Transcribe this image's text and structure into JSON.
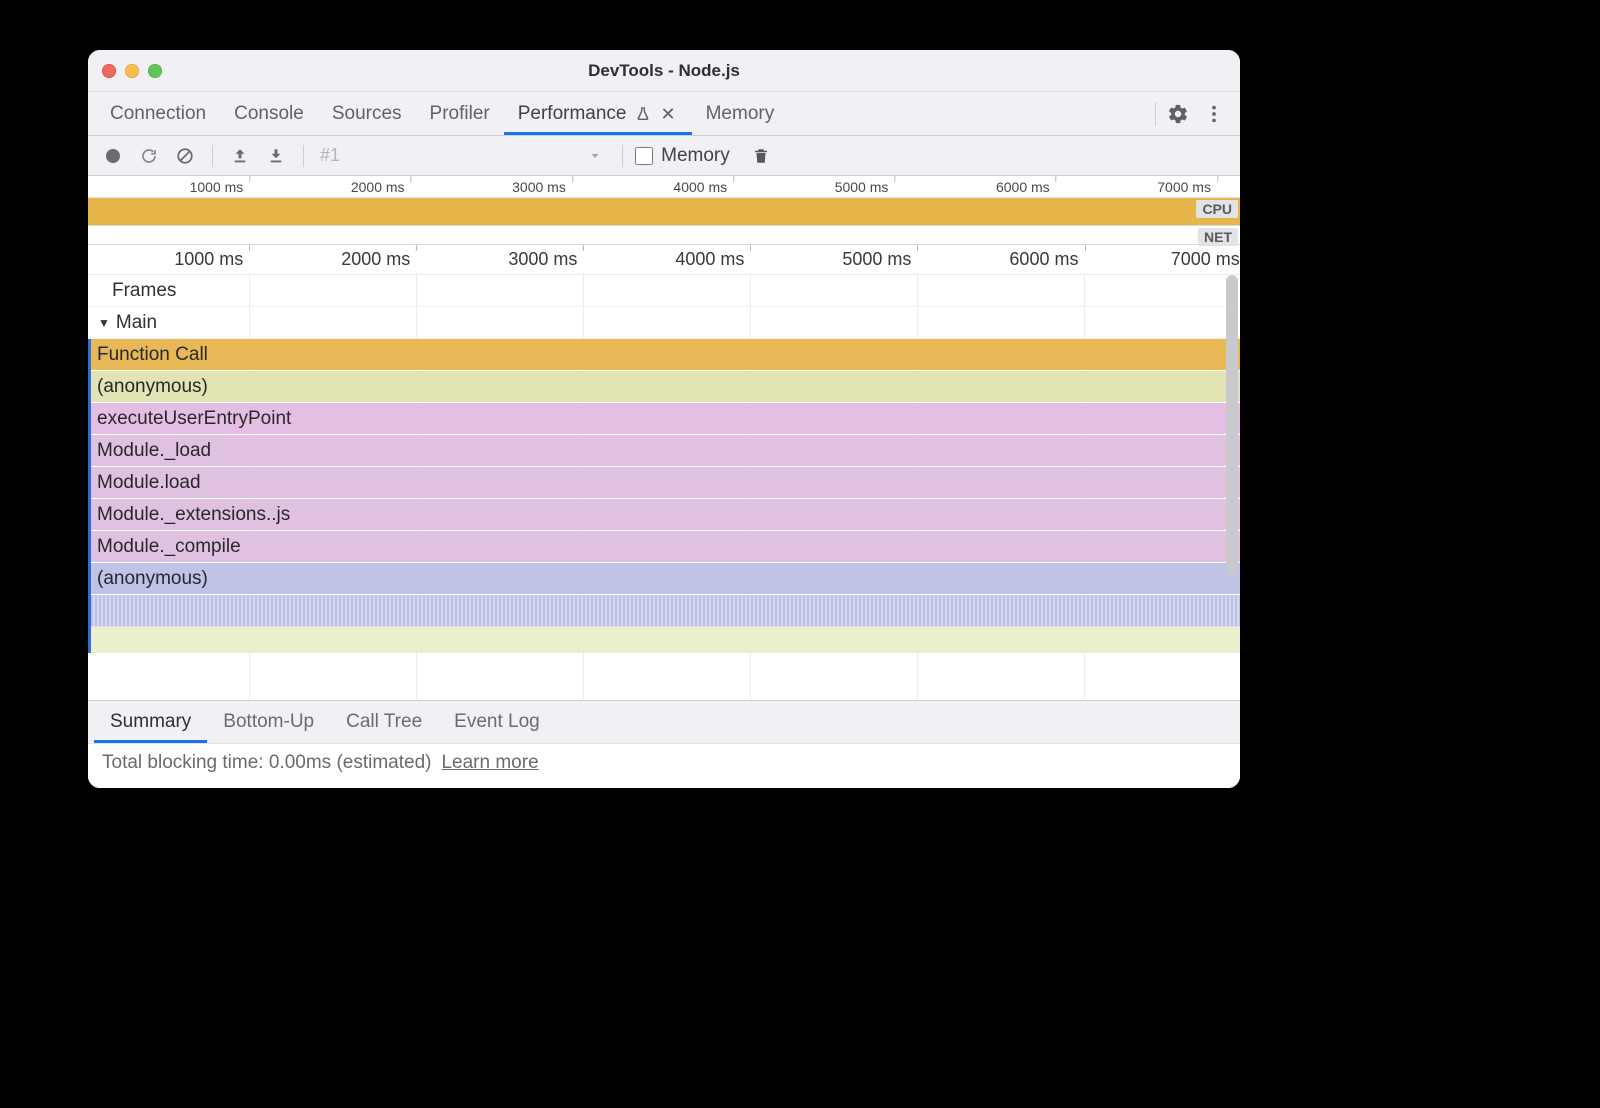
{
  "window": {
    "title": "DevTools - Node.js"
  },
  "tabs": {
    "list": [
      {
        "label": "Connection",
        "active": false
      },
      {
        "label": "Console",
        "active": false
      },
      {
        "label": "Sources",
        "active": false
      },
      {
        "label": "Profiler",
        "active": false
      },
      {
        "label": "Performance",
        "active": true,
        "experimental": true,
        "closable": true
      },
      {
        "label": "Memory",
        "active": false
      }
    ]
  },
  "toolbar": {
    "recording_id": "#1",
    "memory_label": "Memory",
    "memory_checked": false
  },
  "overview": {
    "tick_labels": [
      "1000 ms",
      "2000 ms",
      "3000 ms",
      "4000 ms",
      "5000 ms",
      "6000 ms",
      "7000 ms"
    ],
    "tick_positions_pct": [
      14,
      28,
      42,
      56,
      70,
      84,
      98
    ],
    "cpu_label": "CPU",
    "net_label": "NET",
    "cpu_color": "#e7b64a"
  },
  "detail_ruler": {
    "tick_labels": [
      "1000 ms",
      "2000 ms",
      "3000 ms",
      "4000 ms",
      "5000 ms",
      "6000 ms",
      "7000 ms"
    ],
    "tick_positions_pct": [
      14,
      28.5,
      43,
      57.5,
      72,
      86.5,
      100.5
    ]
  },
  "tracks": {
    "gridline_positions_pct": [
      14,
      28.5,
      43,
      57.5,
      72,
      86.5
    ],
    "frames_label": "Frames",
    "main_label": "Main",
    "flame": [
      {
        "label": "Function Call",
        "color": "#e8b756"
      },
      {
        "label": "(anonymous)",
        "color": "#e2e4b4"
      },
      {
        "label": "executeUserEntryPoint",
        "color": "#e4bfe3"
      },
      {
        "label": "Module._load",
        "color": "#e0c1e2"
      },
      {
        "label": "Module.load",
        "color": "#e0c1e2"
      },
      {
        "label": "Module._extensions..js",
        "color": "#e0c1e2"
      },
      {
        "label": "Module._compile",
        "color": "#e0c1e2"
      },
      {
        "label": "(anonymous)",
        "color": "#bfc3e6"
      }
    ]
  },
  "bottom": {
    "tabs": [
      {
        "label": "Summary",
        "active": true
      },
      {
        "label": "Bottom-Up",
        "active": false
      },
      {
        "label": "Call Tree",
        "active": false
      },
      {
        "label": "Event Log",
        "active": false
      }
    ],
    "blocking_text": "Total blocking time: 0.00ms (estimated)",
    "learn_more": "Learn more"
  },
  "colors": {
    "accent": "#1a73e8",
    "text_muted": "#6a6b70",
    "divider": "#cfcfd4"
  }
}
